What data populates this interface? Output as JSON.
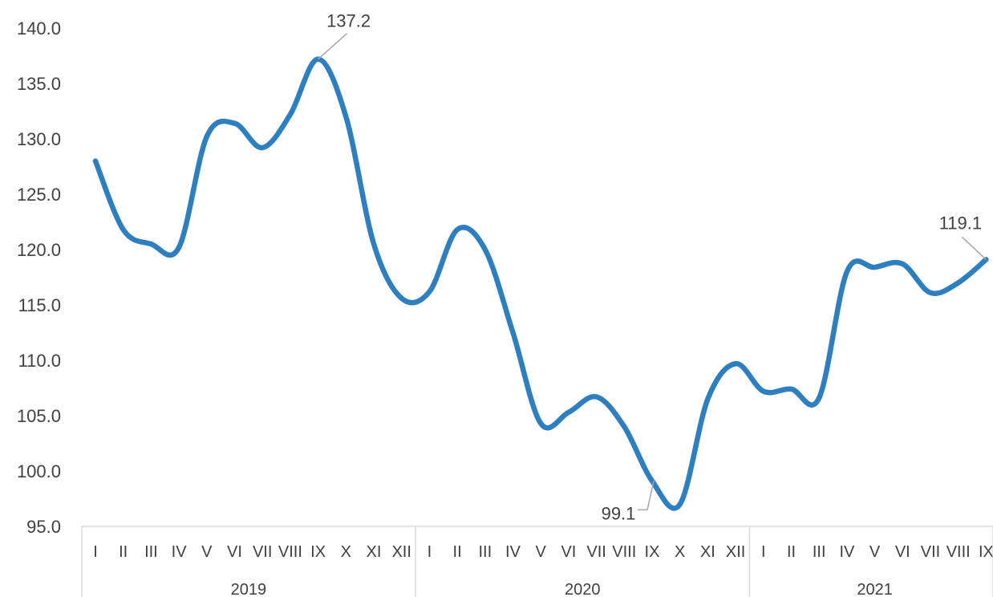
{
  "chart_data": {
    "type": "line",
    "title": "",
    "xlabel": "",
    "ylabel": "",
    "ylim": [
      95,
      140
    ],
    "y_ticks": [
      "95.0",
      "100.0",
      "105.0",
      "110.0",
      "115.0",
      "120.0",
      "125.0",
      "130.0",
      "135.0",
      "140.0"
    ],
    "grid": false,
    "legend": "none",
    "line_color": "#2E7FBF",
    "groups": [
      {
        "year": "2019",
        "months": [
          "I",
          "II",
          "III",
          "IV",
          "V",
          "VI",
          "VII",
          "VIII",
          "IX",
          "X",
          "XI",
          "XII"
        ]
      },
      {
        "year": "2020",
        "months": [
          "I",
          "II",
          "III",
          "IV",
          "V",
          "VI",
          "VII",
          "VIII",
          "IX",
          "X",
          "XI",
          "XII"
        ]
      },
      {
        "year": "2021",
        "months": [
          "I",
          "II",
          "III",
          "IV",
          "V",
          "VI",
          "VII",
          "VIII",
          "IX"
        ]
      }
    ],
    "series": [
      {
        "values": [
          128.0,
          121.8,
          120.5,
          120.2,
          130.2,
          131.4,
          129.2,
          132.2,
          137.2,
          132.0,
          120.5,
          115.6,
          116.2,
          121.8,
          120.0,
          112.5,
          104.3,
          105.3,
          106.7,
          104.0,
          99.1,
          97.0,
          106.5,
          109.7,
          107.2,
          107.4,
          106.6,
          118.0,
          118.4,
          118.7,
          116.1,
          117.0,
          119.1
        ]
      }
    ],
    "annotations": [
      {
        "index": 8,
        "text": "137.2"
      },
      {
        "index": 20,
        "text": "99.1"
      },
      {
        "index": 32,
        "text": "119.1"
      }
    ]
  }
}
